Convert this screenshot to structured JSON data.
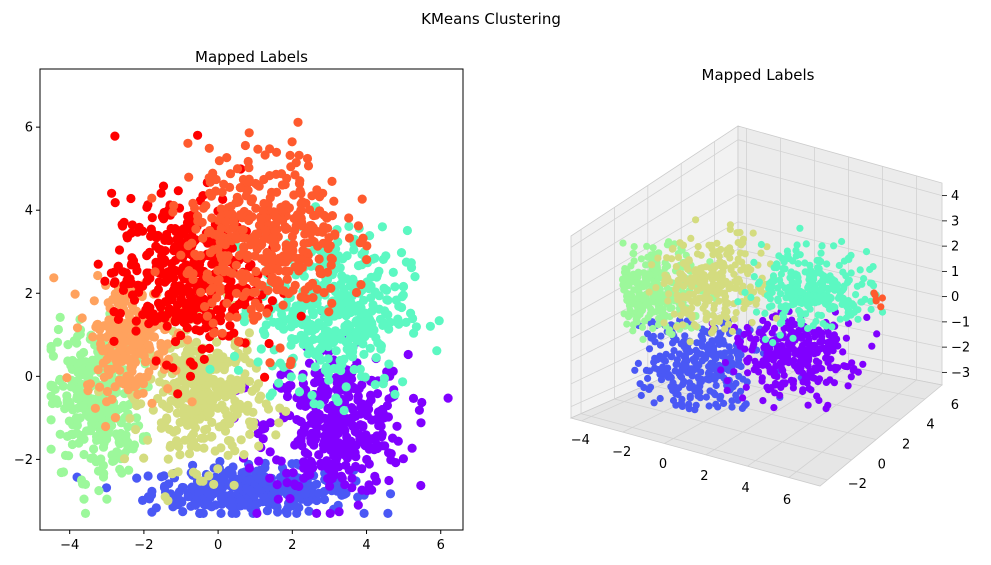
{
  "figure": {
    "suptitle": "KMeans Clustering"
  },
  "colors": {
    "purple": "#8000ff",
    "blue": "#4a58f5",
    "green": "#9cf89b",
    "olive": "#d4dc7f",
    "aqua": "#5cf8c2",
    "orange_light": "#ffa25e",
    "orange_red": "#ff5a2e",
    "red": "#ff0000"
  },
  "chart_data": [
    {
      "type": "scatter",
      "title": "Mapped Labels",
      "xlim": [
        -4.8,
        6.6
      ],
      "ylim": [
        -3.7,
        7.4
      ],
      "xticks": [
        -4,
        -2,
        0,
        2,
        4,
        6
      ],
      "yticks": [
        -2,
        0,
        2,
        4,
        6
      ],
      "xtick_labels": [
        "−4",
        "−2",
        "0",
        "2",
        "4",
        "6"
      ],
      "ytick_labels": [
        "−2",
        "0",
        "2",
        "4",
        "6"
      ],
      "clusters": [
        {
          "color": "blue",
          "center": [
            0.9,
            -2.75
          ],
          "spread": [
            1.35,
            0.28
          ],
          "n": 340
        },
        {
          "color": "purple",
          "center": [
            3.2,
            -1.2
          ],
          "spread": [
            0.95,
            0.85
          ],
          "n": 380
        },
        {
          "color": "green",
          "center": [
            -3.3,
            -0.6
          ],
          "spread": [
            0.6,
            0.9
          ],
          "n": 320
        },
        {
          "color": "olive",
          "center": [
            -0.4,
            -0.5
          ],
          "spread": [
            0.75,
            0.85
          ],
          "n": 340
        },
        {
          "color": "aqua",
          "center": [
            3.1,
            1.6
          ],
          "spread": [
            1.0,
            0.95
          ],
          "n": 400
        },
        {
          "color": "orange_light",
          "center": [
            -2.4,
            0.9
          ],
          "spread": [
            0.6,
            0.7
          ],
          "n": 220
        },
        {
          "color": "red",
          "center": [
            -0.9,
            2.4
          ],
          "spread": [
            0.95,
            0.95
          ],
          "n": 400
        },
        {
          "color": "orange_red",
          "center": [
            1.3,
            3.4
          ],
          "spread": [
            1.05,
            1.0
          ],
          "n": 420
        }
      ]
    },
    {
      "type": "scatter3d",
      "title": "Mapped Labels",
      "xticks": [
        -4,
        -2,
        0,
        2,
        4,
        6
      ],
      "yticks": [
        -2,
        0,
        2,
        4,
        6
      ],
      "zticks": [
        -3,
        -2,
        -1,
        0,
        1,
        2,
        3,
        4
      ],
      "xtick_labels": [
        "−4",
        "−2",
        "0",
        "2",
        "4",
        "6"
      ],
      "ytick_labels": [
        "−2",
        "0",
        "2",
        "4",
        "6"
      ],
      "ztick_labels": [
        "−3",
        "−2",
        "−1",
        "0",
        "1",
        "2",
        "3",
        "4"
      ],
      "clusters": [
        {
          "color": "blue",
          "n": 300
        },
        {
          "color": "purple",
          "n": 300
        },
        {
          "color": "green",
          "n": 260
        },
        {
          "color": "olive",
          "n": 260
        },
        {
          "color": "aqua",
          "n": 280
        },
        {
          "color": "orange_red",
          "n": 6
        }
      ]
    }
  ]
}
